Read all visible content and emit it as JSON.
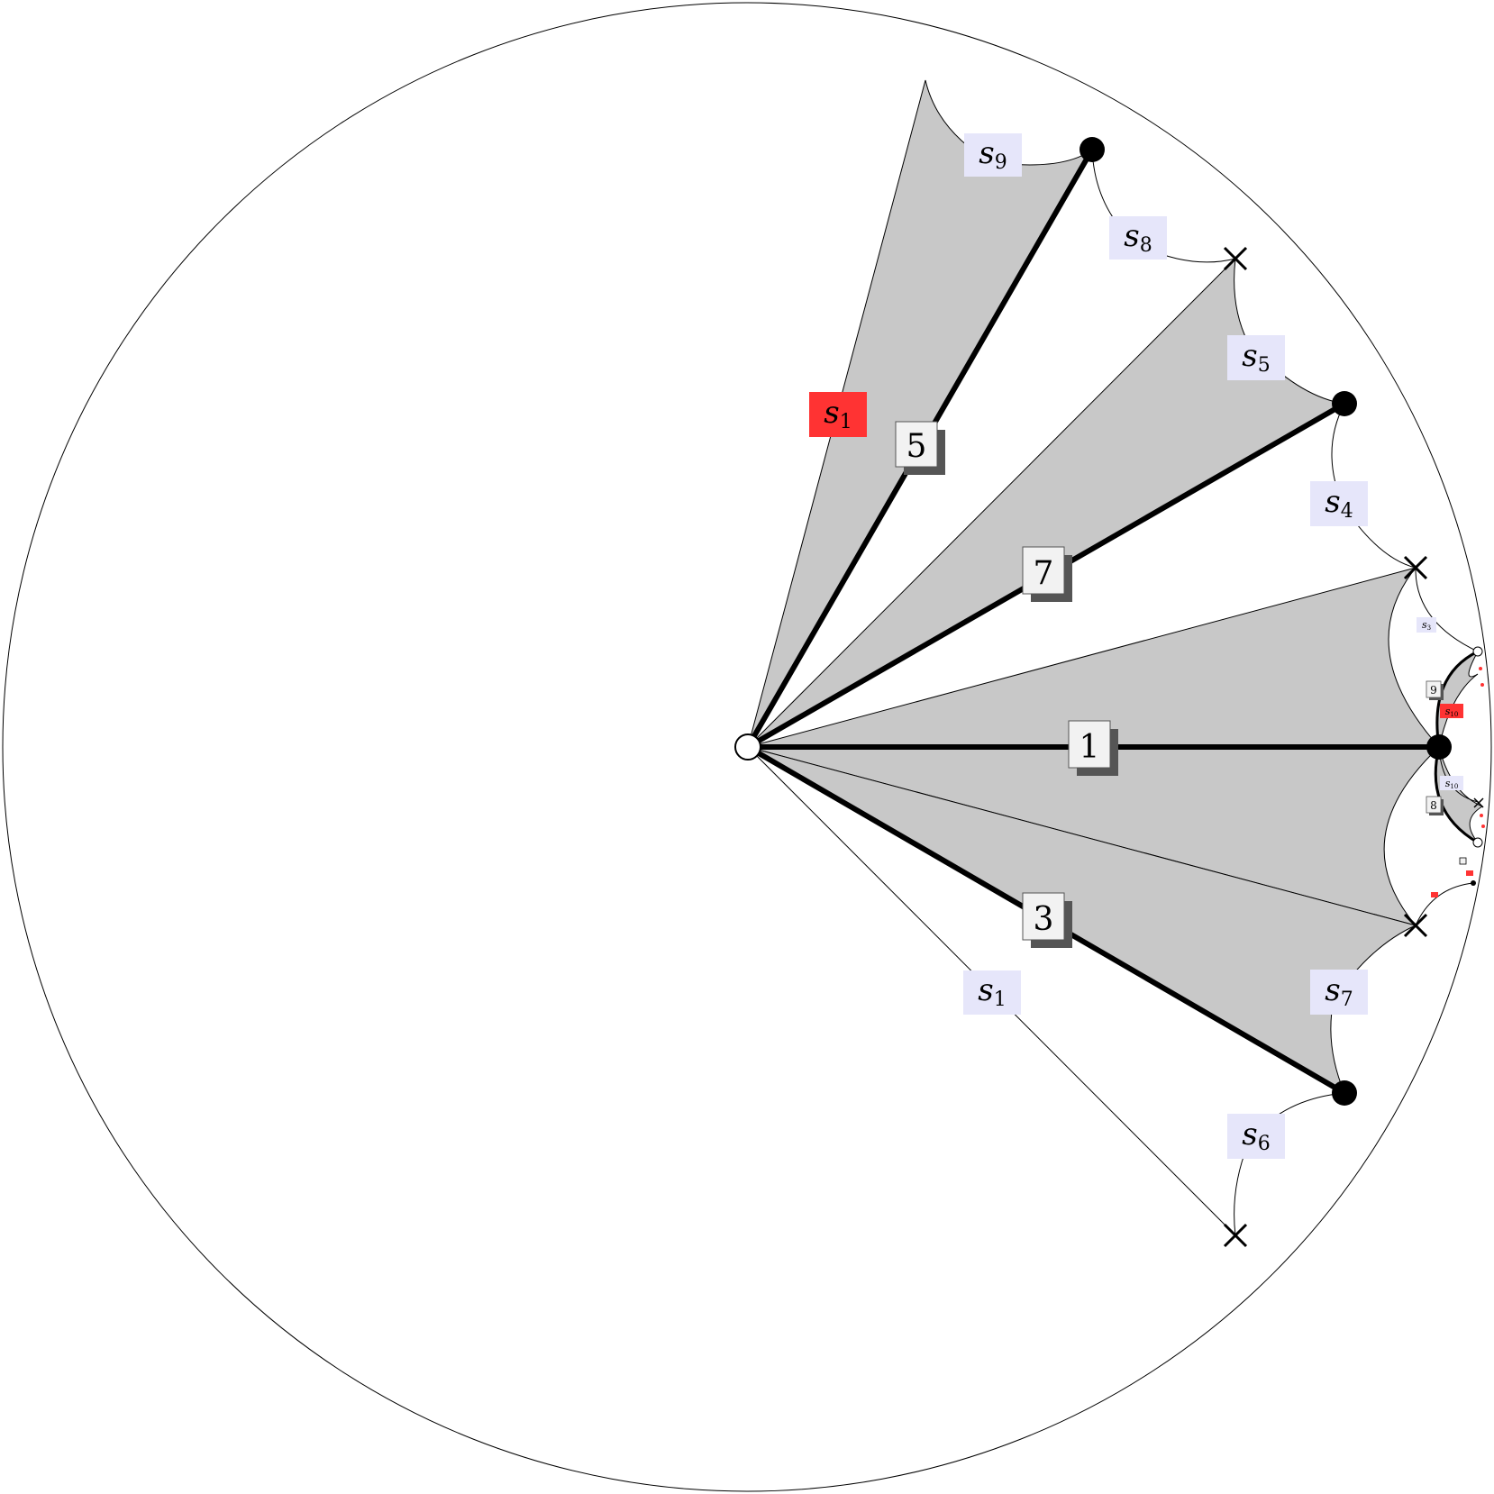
{
  "edge_labels": {
    "e5": "5",
    "e7": "7",
    "e1": "1",
    "e3": "3",
    "e9": "9",
    "e8": "8"
  },
  "arc_labels": {
    "s9": {
      "base": "s",
      "sub": "9"
    },
    "s8": {
      "base": "s",
      "sub": "8"
    },
    "s5": {
      "base": "s",
      "sub": "5"
    },
    "s4": {
      "base": "s",
      "sub": "4"
    },
    "s1_red": {
      "base": "s",
      "sub": "1"
    },
    "s1_blue": {
      "base": "s",
      "sub": "1"
    },
    "s7": {
      "base": "s",
      "sub": "7"
    },
    "s6": {
      "base": "s",
      "sub": "6"
    },
    "s3": {
      "base": "s",
      "sub": "3"
    },
    "s10_red": {
      "base": "s",
      "sub": "10"
    },
    "s10_blue": {
      "base": "s",
      "sub": "10"
    }
  },
  "colors": {
    "label_blue": "#e6e6fa",
    "label_red": "#ff3333",
    "region_gray": "#c8c8c8",
    "box_fill": "#f2f2f2",
    "box_shadow": "#555555"
  }
}
